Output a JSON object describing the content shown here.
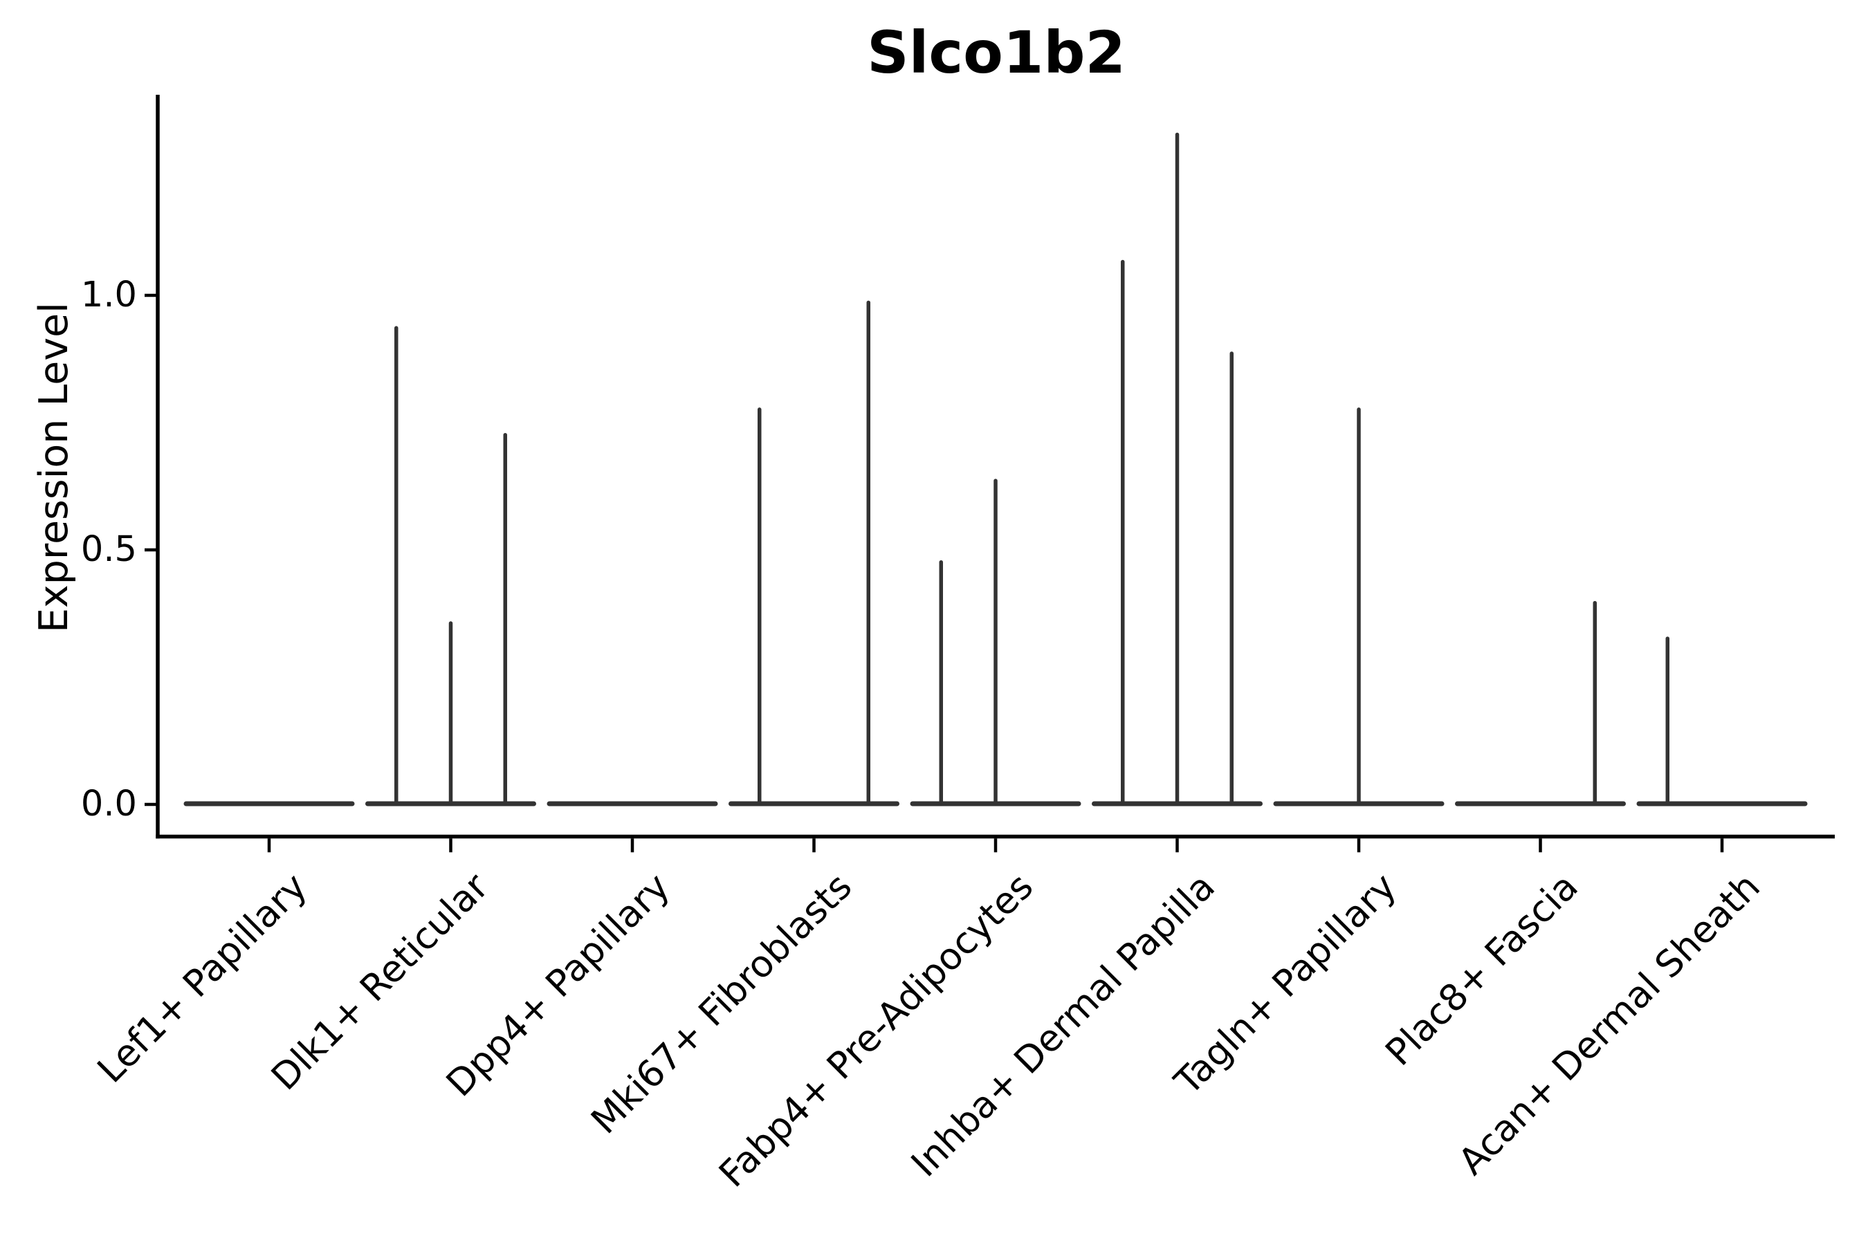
{
  "chart_data": {
    "type": "violin",
    "title": "Slco1b2",
    "ylabel": "Expression Level",
    "xlabel": "",
    "ylim": [
      0,
      1.39
    ],
    "grid": false,
    "legend": "none",
    "yticks": [
      {
        "label": "0.0",
        "value": 0.0
      },
      {
        "label": "0.5",
        "value": 0.5
      },
      {
        "label": "1.0",
        "value": 1.0
      }
    ],
    "colors": {
      "violin": "#333333",
      "axis": "#000000",
      "text": "#000000",
      "background": "#ffffff"
    },
    "categories": [
      {
        "label": "Lef1+ Papillary",
        "baseline": 0.0,
        "spikes": []
      },
      {
        "label": "Dlk1+ Reticular",
        "baseline": 0.0,
        "spikes": [
          {
            "pos": -0.3,
            "value": 0.94
          },
          {
            "pos": 0.0,
            "value": 0.36
          },
          {
            "pos": 0.3,
            "value": 0.73
          }
        ]
      },
      {
        "label": "Dpp4+ Papillary",
        "baseline": 0.0,
        "spikes": []
      },
      {
        "label": "Mki67+ Fibroblasts",
        "baseline": 0.0,
        "spikes": [
          {
            "pos": -0.3,
            "value": 0.78
          },
          {
            "pos": 0.3,
            "value": 0.99
          }
        ]
      },
      {
        "label": "Fabp4+ Pre-Adipocytes",
        "baseline": 0.0,
        "spikes": [
          {
            "pos": -0.3,
            "value": 0.48
          },
          {
            "pos": 0.0,
            "value": 0.64
          }
        ]
      },
      {
        "label": "Inhba+ Dermal Papilla",
        "baseline": 0.0,
        "spikes": [
          {
            "pos": -0.3,
            "value": 1.07
          },
          {
            "pos": 0.0,
            "value": 1.32
          },
          {
            "pos": 0.3,
            "value": 0.89
          }
        ]
      },
      {
        "label": "Tagln+ Papillary",
        "baseline": 0.0,
        "spikes": [
          {
            "pos": 0.0,
            "value": 0.78
          }
        ]
      },
      {
        "label": "Plac8+ Fascia",
        "baseline": 0.0,
        "spikes": [
          {
            "pos": 0.3,
            "value": 0.4
          }
        ]
      },
      {
        "label": "Acan+ Dermal Sheath",
        "baseline": 0.0,
        "spikes": [
          {
            "pos": -0.3,
            "value": 0.33
          }
        ]
      }
    ]
  }
}
